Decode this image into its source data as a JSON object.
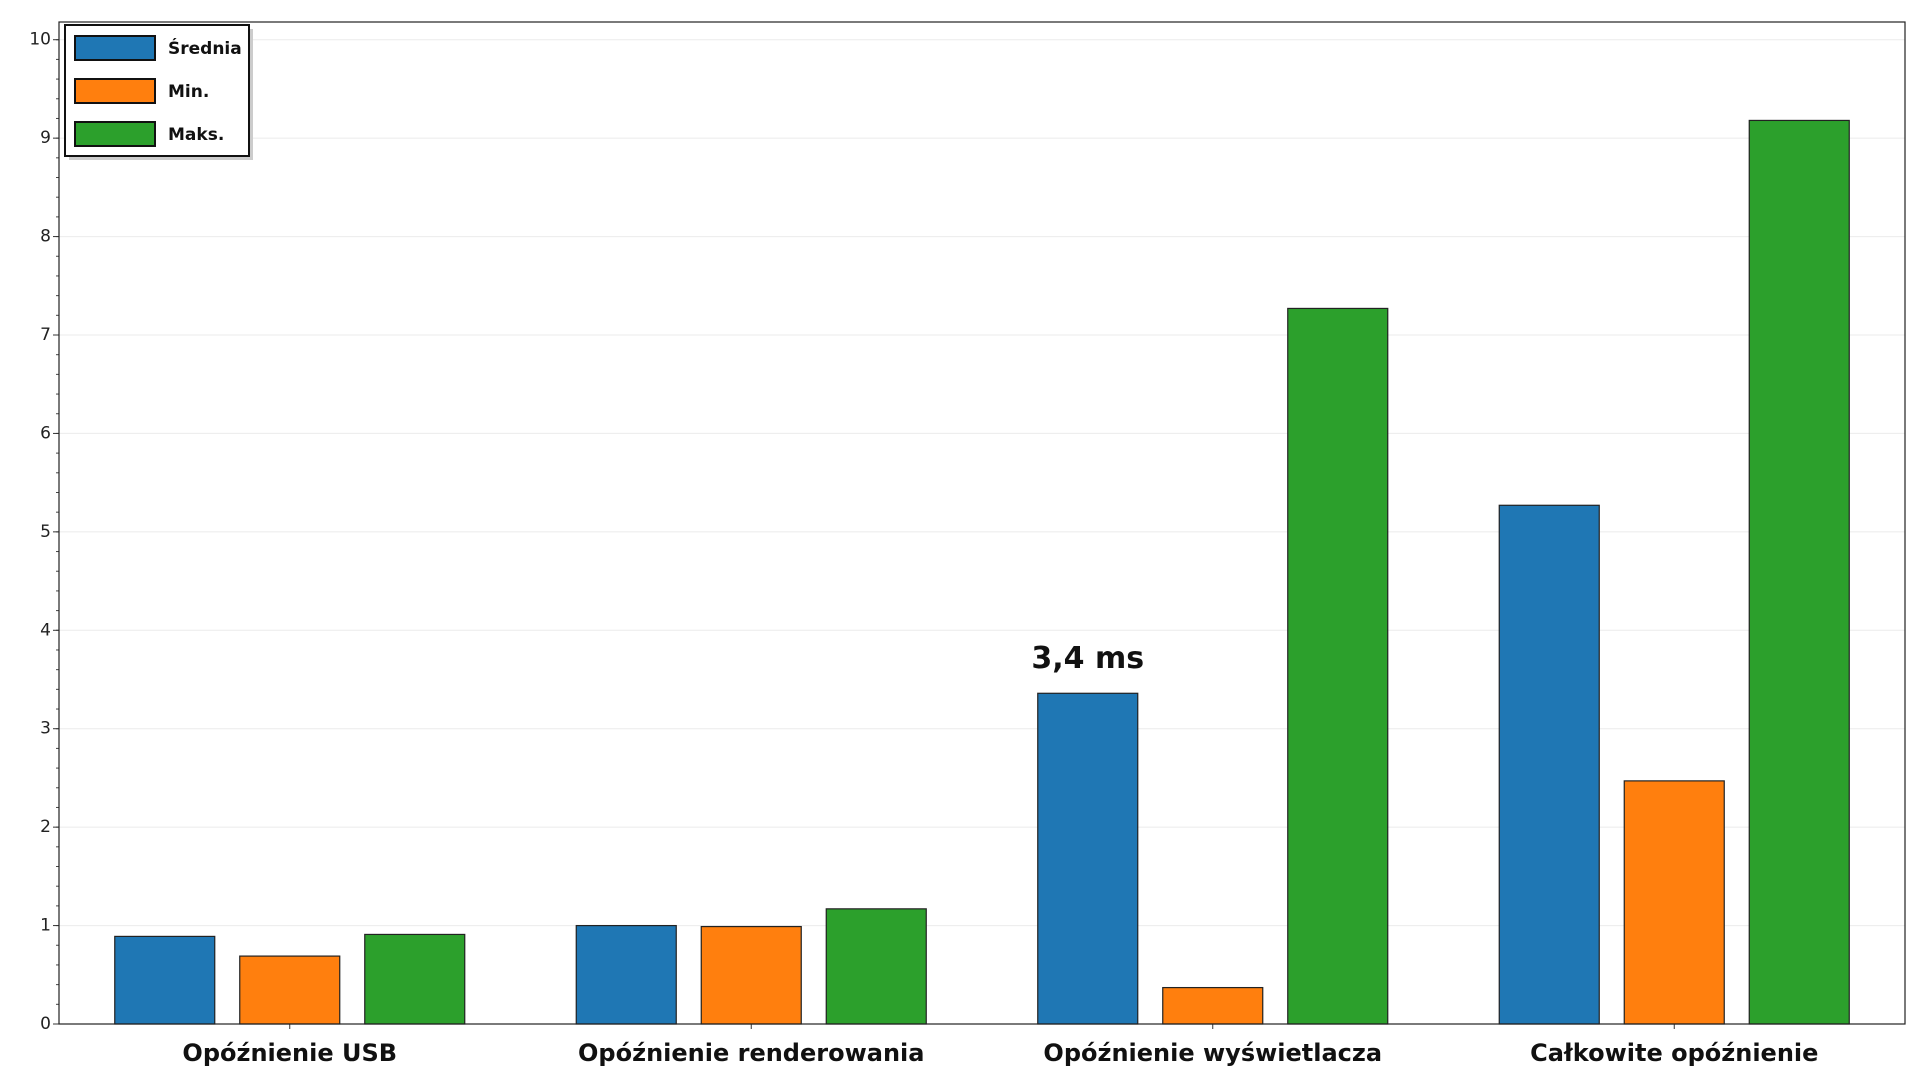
{
  "chart_data": {
    "type": "bar",
    "categories": [
      "Opóźnienie USB",
      "Opóźnienie renderowania",
      "Opóźnienie wyświetlacza",
      "Całkowite opóźnienie"
    ],
    "series": [
      {
        "name": "Średnia",
        "color": "#1f77b4",
        "values": [
          0.89,
          1.0,
          3.36,
          5.27
        ],
        "value_labels": [
          null,
          null,
          "3,4 ms",
          null
        ]
      },
      {
        "name": "Min.",
        "color": "#ff7f0e",
        "values": [
          0.69,
          0.99,
          0.37,
          2.47
        ]
      },
      {
        "name": "Maks.",
        "color": "#2ca02c",
        "values": [
          0.91,
          1.17,
          7.27,
          9.18
        ]
      }
    ],
    "ylim": [
      0,
      10.18
    ],
    "yticks": [
      0,
      1,
      2,
      3,
      4,
      5,
      6,
      7,
      8,
      9,
      10
    ],
    "grid": true,
    "legend": "upper left"
  }
}
